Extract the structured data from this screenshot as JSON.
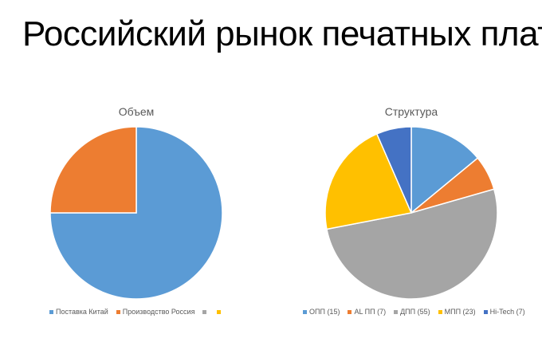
{
  "slide": {
    "title": "Российский рынок печатных плат"
  },
  "chart_data": [
    {
      "type": "pie",
      "title": "Объем",
      "categories": [
        "Поставка Китай",
        "Производство Россия",
        "",
        ""
      ],
      "values": [
        75,
        25,
        0,
        0
      ],
      "colors": [
        "#5B9BD5",
        "#ED7D31",
        "#A5A5A5",
        "#FFC000"
      ],
      "legend": "bottom"
    },
    {
      "type": "pie",
      "title": "Структура",
      "categories": [
        "ОПП (15)",
        "AL ПП (7)",
        "ДПП (55)",
        "МПП (23)",
        "Hi-Tech (7)"
      ],
      "values": [
        15,
        7,
        55,
        23,
        7
      ],
      "colors": [
        "#5B9BD5",
        "#ED7D31",
        "#A5A5A5",
        "#FFC000",
        "#4472C4"
      ],
      "legend": "bottom"
    }
  ]
}
